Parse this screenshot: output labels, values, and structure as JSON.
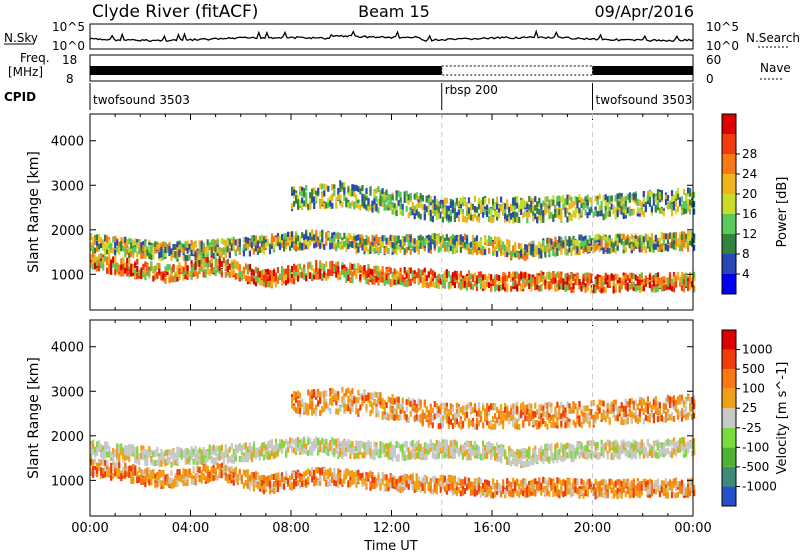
{
  "header": {
    "station": "Clyde River (fitACF)",
    "beam": "Beam 15",
    "date": "09/Apr/2016"
  },
  "top_panels": {
    "nsky_label": "N.Sky",
    "nsky_tick_top": "10^5",
    "nsky_tick_bottom": "10^0",
    "nsearch_tick_top": "10^5",
    "nsearch_tick_bottom": "10^0",
    "nsearch_label": "N.Search",
    "freq_label_1": "Freq.",
    "freq_label_2": "[MHz]",
    "freq_ticks": [
      "18",
      "8"
    ],
    "nave_ticks": [
      "60",
      "0"
    ],
    "nave_label": "Nave",
    "cpid_label": "CPID",
    "cpid_segments": [
      {
        "label": "twofsound 3503",
        "start_hr": 0,
        "end_hr": 14
      },
      {
        "label": "rbsp 200",
        "start_hr": 14,
        "end_hr": 20
      },
      {
        "label": "twofsound 3503",
        "start_hr": 20,
        "end_hr": 24
      }
    ]
  },
  "chart_data": [
    {
      "type": "heatmap",
      "title": "Power",
      "xlabel": "Time UT",
      "ylabel": "Slant Range [km]",
      "xlim_hours": [
        0,
        24
      ],
      "ylim_km": [
        200,
        4600
      ],
      "x_tick_labels": [
        "00:00",
        "04:00",
        "08:00",
        "12:00",
        "16:00",
        "20:00",
        "00:00"
      ],
      "y_ticks": [
        1000,
        2000,
        3000,
        4000
      ],
      "colorbar": {
        "label": "Power [dB]",
        "ticks": [
          "4",
          "8",
          "12",
          "16",
          "20",
          "24",
          "28"
        ],
        "colors": [
          "#0000ee",
          "#2846b4",
          "#32823c",
          "#5ac85a",
          "#c8dc28",
          "#f0b41e",
          "#fa7814",
          "#f03c0a",
          "#dc0000"
        ]
      },
      "echo_bands": [
        {
          "name": "main",
          "start_hr": 0,
          "end_hr": 24,
          "km": [
            [
              0,
              1700
            ],
            [
              3,
              1500
            ],
            [
              6,
              1620
            ],
            [
              9,
              1800
            ],
            [
              10,
              1700
            ],
            [
              12,
              1650
            ],
            [
              14,
              1700
            ],
            [
              16,
              1650
            ],
            [
              17,
              1480
            ],
            [
              18,
              1600
            ],
            [
              20,
              1680
            ],
            [
              22,
              1700
            ],
            [
              24,
              1750
            ]
          ],
          "dominant": "orange"
        },
        {
          "name": "lower",
          "start_hr": 0,
          "end_hr": 24,
          "km": [
            [
              0,
              1300
            ],
            [
              3,
              1000
            ],
            [
              5,
              1200
            ],
            [
              7,
              900
            ],
            [
              9,
              1100
            ],
            [
              12,
              950
            ],
            [
              14,
              900
            ],
            [
              16,
              820
            ],
            [
              18,
              850
            ],
            [
              20,
              800
            ],
            [
              24,
              830
            ]
          ],
          "dominant": "red"
        },
        {
          "name": "upper",
          "start_hr": 8,
          "end_hr": 24,
          "km": [
            [
              8,
              2700
            ],
            [
              10,
              2800
            ],
            [
              14,
              2450
            ],
            [
              18,
              2450
            ],
            [
              20,
              2500
            ],
            [
              24,
              2650
            ]
          ],
          "dominant": "green"
        }
      ]
    },
    {
      "type": "heatmap",
      "title": "Velocity",
      "xlabel": "Time UT",
      "ylabel": "Slant Range [km]",
      "xlim_hours": [
        0,
        24
      ],
      "ylim_km": [
        200,
        4600
      ],
      "x_tick_labels": [
        "00:00",
        "04:00",
        "08:00",
        "12:00",
        "16:00",
        "20:00",
        "00:00"
      ],
      "y_ticks": [
        1000,
        2000,
        3000,
        4000
      ],
      "colorbar": {
        "label": "Velocity [m s^-1]",
        "ticks": [
          "1000",
          "500",
          "100",
          "25",
          "-25",
          "-100",
          "-500",
          "-1000"
        ],
        "colors": [
          "#2850c8",
          "#3c8c78",
          "#50b432",
          "#78dc3c",
          "#c8c8c8",
          "#f0a014",
          "#fa7814",
          "#f03c0a",
          "#dc0000"
        ]
      },
      "echo_bands": [
        {
          "name": "main",
          "start_hr": 0,
          "end_hr": 24,
          "km": [
            [
              0,
              1700
            ],
            [
              3,
              1500
            ],
            [
              6,
              1620
            ],
            [
              9,
              1800
            ],
            [
              10,
              1700
            ],
            [
              12,
              1650
            ],
            [
              14,
              1700
            ],
            [
              16,
              1650
            ],
            [
              17,
              1480
            ],
            [
              18,
              1600
            ],
            [
              20,
              1680
            ],
            [
              22,
              1700
            ],
            [
              24,
              1750
            ]
          ],
          "dominant": "grey"
        },
        {
          "name": "lower",
          "start_hr": 0,
          "end_hr": 24,
          "km": [
            [
              0,
              1300
            ],
            [
              3,
              1000
            ],
            [
              5,
              1200
            ],
            [
              7,
              900
            ],
            [
              9,
              1100
            ],
            [
              12,
              950
            ],
            [
              14,
              900
            ],
            [
              16,
              820
            ],
            [
              18,
              850
            ],
            [
              20,
              800
            ],
            [
              24,
              830
            ]
          ],
          "dominant": "orange"
        },
        {
          "name": "upper",
          "start_hr": 8,
          "end_hr": 24,
          "km": [
            [
              8,
              2700
            ],
            [
              10,
              2800
            ],
            [
              14,
              2450
            ],
            [
              18,
              2450
            ],
            [
              20,
              2500
            ],
            [
              24,
              2650
            ]
          ],
          "dominant": "orange"
        }
      ]
    }
  ]
}
